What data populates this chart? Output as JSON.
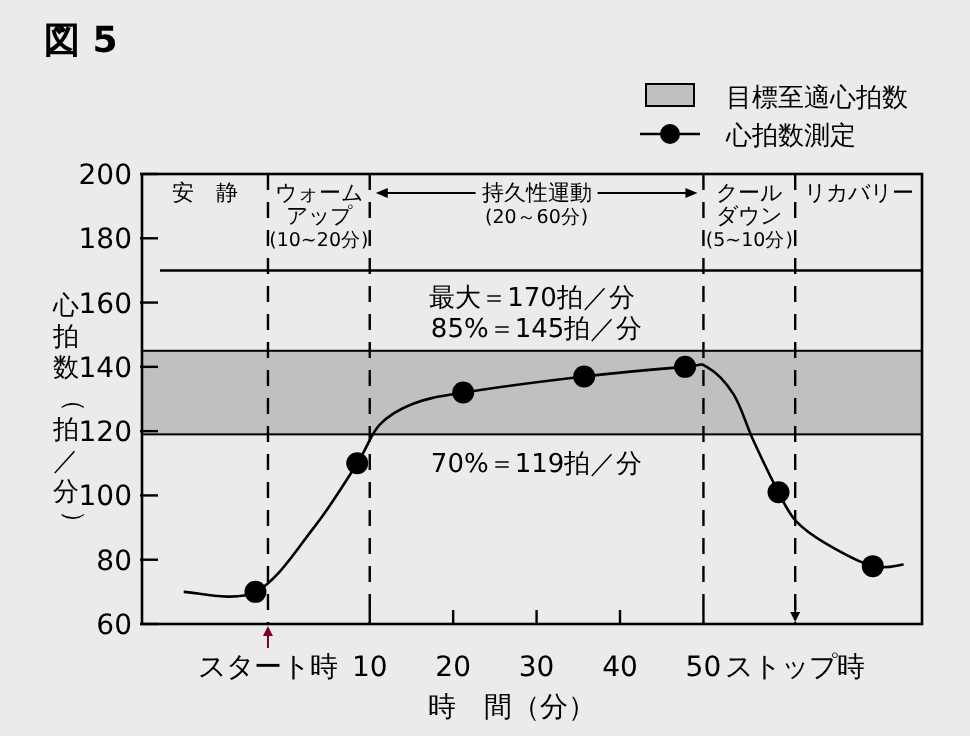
{
  "chart_data": {
    "type": "line",
    "title": "図 5",
    "xlabel": "時　間（分）",
    "ylabel": "心拍数（拍／分）",
    "xlim": [
      -17.3,
      76.2
    ],
    "ylim": [
      60,
      200
    ],
    "xticks": [
      {
        "value": -2.2,
        "label": "スタート時"
      },
      10,
      20,
      30,
      40,
      50,
      {
        "value": 61,
        "label": "ストップ時"
      }
    ],
    "yticks": [
      60,
      80,
      100,
      120,
      140,
      160,
      180,
      200
    ],
    "grid": false,
    "legend": "top right",
    "series": [
      {
        "name": "心拍数測定",
        "color": "#000000",
        "marker": "none",
        "x": [
          -12.3,
          -3.7,
          3.3,
          8.5,
          11.2,
          15.2,
          21.2,
          35.7,
          47.8,
          50.4,
          53.6,
          56,
          59,
          61.1,
          64.7,
          70.3,
          74
        ],
        "values": [
          70,
          70,
          90,
          110,
          122,
          128.5,
          132,
          137,
          140,
          140,
          131.5,
          117,
          101,
          92,
          85,
          78,
          78.5
        ]
      },
      {
        "type": "scatter",
        "color": "#000000",
        "marker": "circle",
        "x": [
          -3.7,
          8.5,
          21.2,
          35.7,
          47.8,
          59,
          70.3
        ],
        "values": [
          70,
          110,
          132,
          137,
          140,
          101,
          78
        ]
      }
    ],
    "bands": [
      {
        "axis": "y",
        "from": 119,
        "to": 145,
        "label": "目標至適心拍数",
        "color": "#c0c0c0"
      }
    ],
    "ref_lines": [
      {
        "axis": "y",
        "value": 170,
        "label": "最大＝170拍／分",
        "line_style": "solid",
        "color": "#000000"
      },
      {
        "axis": "x",
        "value": -2.2,
        "line_style": "dashed",
        "color": "#000000"
      },
      {
        "axis": "x",
        "value": 10,
        "line_style": "dashed",
        "color": "#000000"
      },
      {
        "axis": "x",
        "value": 50,
        "line_style": "dashed",
        "color": "#000000"
      },
      {
        "axis": "x",
        "value": 61,
        "line_style": "dashed",
        "color": "#000000"
      }
    ],
    "annotations": [
      "安　静",
      "ウォームアップ(10~20分)",
      "持久性運動(20～60分)",
      "クールダウン(5~10分)",
      "リカバリー",
      {
        "text": "85%＝145拍／分",
        "x": 30,
        "y": 145
      },
      {
        "text": "70%＝119拍／分",
        "x": 30,
        "y": 119
      }
    ]
  }
}
